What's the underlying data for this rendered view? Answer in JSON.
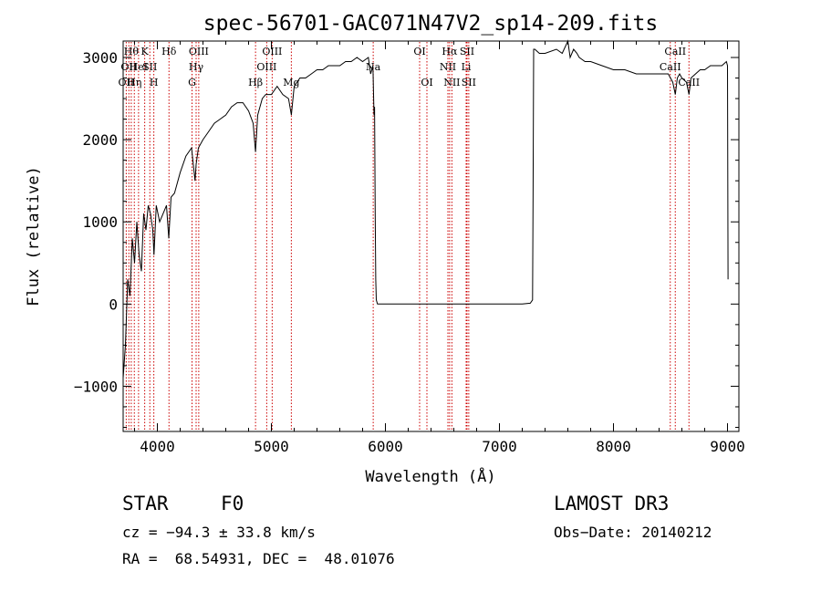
{
  "chart_data": {
    "type": "line",
    "title": "spec-56701-GAC071N47V2_sp14-209.fits",
    "xlabel": "Wavelength (Å)",
    "ylabel": "Flux (relative)",
    "xlim": [
      3700,
      9100
    ],
    "ylim": [
      -1550,
      3200
    ],
    "xticks": [
      4000,
      5000,
      6000,
      7000,
      8000,
      9000
    ],
    "yticks": [
      -1000,
      0,
      1000,
      2000,
      3000
    ],
    "xtick_labels": [
      "4000",
      "5000",
      "6000",
      "7000",
      "8000",
      "9000"
    ],
    "ytick_labels": [
      "−1000",
      "0",
      "1000",
      "2000",
      "3000"
    ],
    "series": [
      {
        "name": "flux",
        "x": [
          3700,
          3720,
          3740,
          3760,
          3780,
          3800,
          3820,
          3840,
          3860,
          3880,
          3900,
          3920,
          3940,
          3960,
          3970,
          3990,
          4020,
          4050,
          4080,
          4100,
          4120,
          4150,
          4200,
          4250,
          4300,
          4330,
          4340,
          4360,
          4400,
          4450,
          4500,
          4550,
          4600,
          4650,
          4700,
          4750,
          4800,
          4840,
          4861,
          4880,
          4920,
          4950,
          5000,
          5050,
          5100,
          5150,
          5175,
          5200,
          5250,
          5300,
          5350,
          5400,
          5450,
          5500,
          5550,
          5600,
          5650,
          5700,
          5750,
          5800,
          5850,
          5870,
          5890,
          5900,
          5905,
          5910,
          5915,
          5920,
          5930,
          6000,
          6500,
          7000,
          7200,
          7270,
          7290,
          7295,
          7300,
          7310,
          7350,
          7400,
          7500,
          7550,
          7600,
          7620,
          7650,
          7680,
          7700,
          7750,
          7800,
          7900,
          8000,
          8100,
          8200,
          8300,
          8400,
          8480,
          8500,
          8520,
          8542,
          8560,
          8580,
          8600,
          8640,
          8662,
          8680,
          8720,
          8760,
          8800,
          8850,
          8900,
          8950,
          8990,
          9000,
          9005
        ],
        "y": [
          -900,
          -500,
          300,
          100,
          800,
          500,
          1000,
          600,
          400,
          1100,
          900,
          1200,
          1100,
          900,
          600,
          1200,
          1000,
          1100,
          1200,
          800,
          1300,
          1350,
          1600,
          1800,
          1900,
          1500,
          1700,
          1900,
          2000,
          2100,
          2200,
          2250,
          2300,
          2400,
          2450,
          2450,
          2350,
          2200,
          1850,
          2300,
          2500,
          2550,
          2550,
          2650,
          2550,
          2500,
          2300,
          2650,
          2750,
          2750,
          2800,
          2850,
          2850,
          2900,
          2900,
          2900,
          2950,
          2950,
          3000,
          2950,
          3000,
          2800,
          2900,
          2300,
          2400,
          1100,
          300,
          50,
          0,
          0,
          0,
          0,
          0,
          10,
          50,
          1400,
          3100,
          3100,
          3050,
          3050,
          3100,
          3050,
          3200,
          3000,
          3100,
          3050,
          3000,
          2950,
          2950,
          2900,
          2850,
          2850,
          2800,
          2800,
          2800,
          2800,
          2750,
          2700,
          2550,
          2750,
          2800,
          2750,
          2700,
          2550,
          2750,
          2800,
          2850,
          2850,
          2900,
          2900,
          2900,
          2950,
          2900,
          300
        ]
      }
    ],
    "line_markers": [
      {
        "wavelength": 3727,
        "label": "OII",
        "row": 2
      },
      {
        "wavelength": 3750,
        "label": "OII",
        "row": 1
      },
      {
        "wavelength": 3771,
        "label": "Hθ",
        "row": 0
      },
      {
        "wavelength": 3798,
        "label": "Hη",
        "row": 2
      },
      {
        "wavelength": 3835,
        "label": "HeI",
        "row": 1
      },
      {
        "wavelength": 3889,
        "label": "K",
        "row": 0
      },
      {
        "wavelength": 3934,
        "label": "SII",
        "row": 1
      },
      {
        "wavelength": 3969,
        "label": "H",
        "row": 2
      },
      {
        "wavelength": 4102,
        "label": "Hδ",
        "row": 0
      },
      {
        "wavelength": 4304,
        "label": "G",
        "row": 2
      },
      {
        "wavelength": 4340,
        "label": "Hγ",
        "row": 1
      },
      {
        "wavelength": 4363,
        "label": "OIII",
        "row": 0
      },
      {
        "wavelength": 4861,
        "label": "Hβ",
        "row": 2
      },
      {
        "wavelength": 4959,
        "label": "OIII",
        "row": 1
      },
      {
        "wavelength": 5007,
        "label": "OIII",
        "row": 0
      },
      {
        "wavelength": 5175,
        "label": "Mg",
        "row": 2
      },
      {
        "wavelength": 5893,
        "label": "Na",
        "row": 1
      },
      {
        "wavelength": 6300,
        "label": "OI",
        "row": 0
      },
      {
        "wavelength": 6364,
        "label": "OI",
        "row": 2
      },
      {
        "wavelength": 6548,
        "label": "NII",
        "row": 1
      },
      {
        "wavelength": 6563,
        "label": "Hα",
        "row": 0
      },
      {
        "wavelength": 6583,
        "label": "NII",
        "row": 2
      },
      {
        "wavelength": 6708,
        "label": "Li",
        "row": 1
      },
      {
        "wavelength": 6716,
        "label": "SII",
        "row": 0
      },
      {
        "wavelength": 6731,
        "label": "SII",
        "row": 2
      },
      {
        "wavelength": 8498,
        "label": "CaII",
        "row": 1
      },
      {
        "wavelength": 8542,
        "label": "CaII",
        "row": 0
      },
      {
        "wavelength": 8662,
        "label": "CaII",
        "row": 2
      }
    ],
    "colors": {
      "line": "#000000",
      "marker": "#cc0000",
      "axis": "#000000"
    }
  },
  "info": {
    "object_class": "STAR",
    "subclass": "F0",
    "survey": "LAMOST DR3",
    "cz": "cz = −94.3 ± 33.8 km/s",
    "obs_date": "Obs−Date: 20140212",
    "coords": "RA =  68.54931, DEC =  48.01076"
  }
}
